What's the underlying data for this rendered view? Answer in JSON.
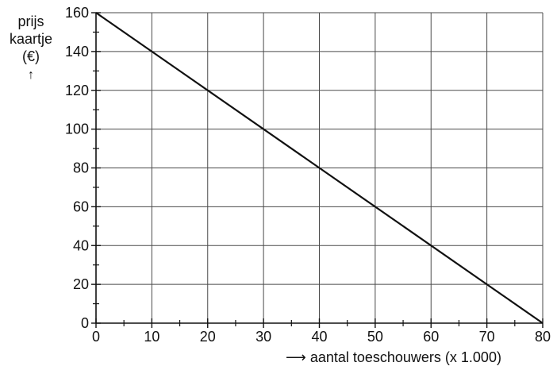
{
  "chart_data": {
    "type": "line",
    "ylabel_lines": [
      "prijs",
      "kaartje",
      "(€)"
    ],
    "xlabel": "aantal toeschouwers (x 1.000)",
    "xlim": [
      0,
      80
    ],
    "ylim": [
      0,
      160
    ],
    "x_ticks": [
      0,
      10,
      20,
      30,
      40,
      50,
      60,
      70,
      80
    ],
    "y_ticks": [
      0,
      20,
      40,
      60,
      80,
      100,
      120,
      140,
      160
    ],
    "grid": true,
    "series": [
      {
        "x": [
          0,
          80
        ],
        "y": [
          160,
          0
        ]
      }
    ],
    "colors": {
      "line": "#111111",
      "grid": "#4a4a4a",
      "axis": "#111111"
    }
  }
}
